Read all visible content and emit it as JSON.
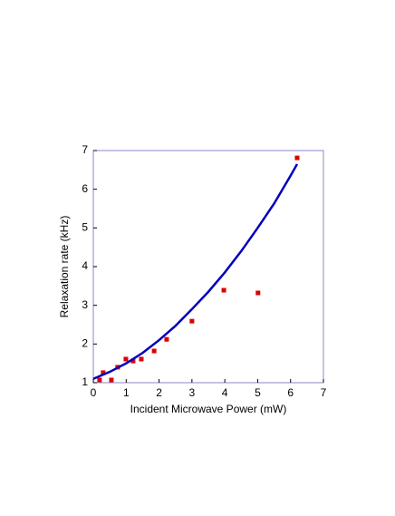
{
  "chart_data": {
    "type": "scatter",
    "xlabel": "Incident Microwave Power (mW)",
    "ylabel": "Relaxation rate (kHz)",
    "xlim": [
      0,
      7
    ],
    "ylim": [
      1,
      7
    ],
    "xticks": [
      0,
      1,
      2,
      3,
      4,
      5,
      6,
      7
    ],
    "yticks": [
      1,
      2,
      3,
      4,
      5,
      6,
      7
    ],
    "frame_color": "#8888cc",
    "series": [
      {
        "type": "scatter",
        "color": "#dd0000",
        "x": [
          0.19,
          0.3,
          0.55,
          0.74,
          0.99,
          1.21,
          1.46,
          1.85,
          2.23,
          3.0,
          3.97,
          5.01,
          6.2
        ],
        "values": [
          1.07,
          1.26,
          1.07,
          1.4,
          1.61,
          1.56,
          1.61,
          1.82,
          2.12,
          2.59,
          3.39,
          3.32,
          6.81
        ]
      },
      {
        "type": "line",
        "color": "#0000bb",
        "x": [
          0,
          0.5,
          1,
          1.5,
          2,
          2.5,
          3,
          3.5,
          4,
          4.5,
          5,
          5.5,
          6,
          6.2
        ],
        "values": [
          1.1,
          1.28,
          1.5,
          1.77,
          2.1,
          2.47,
          2.9,
          3.35,
          3.85,
          4.4,
          5.0,
          5.63,
          6.35,
          6.65
        ]
      }
    ]
  }
}
